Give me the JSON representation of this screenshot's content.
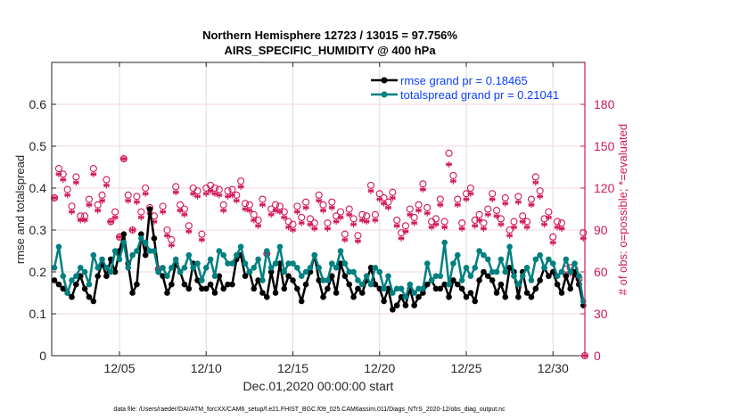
{
  "chart_data": {
    "type": "line",
    "title": [
      "Northern Hemisphere 12723 / 13015 = 97.756%",
      "AIRS_SPECIFIC_HUMIDITY @ 400 hPa"
    ],
    "xlabel": "Dec.01,2020 00:00:00 start",
    "ylabel": "rmse and totalspread",
    "y2label": "# of obs: o=possible; *=evaluated",
    "footer": "data file: /Users/raeder/DAI/ATM_forcXX/CAM6_setup/f.e21.FHIST_BGC.f09_025.CAM6assim.011/Diags_NTrS_2020-12/obs_diag_output.nc",
    "xlim_days": [
      0,
      31.0
    ],
    "ylim": [
      0,
      0.7
    ],
    "y2lim": [
      0,
      210
    ],
    "grid": true,
    "legend_position": "top-right",
    "x_ticks": [
      {
        "day": 4,
        "label": "12/05"
      },
      {
        "day": 9,
        "label": "12/10"
      },
      {
        "day": 14,
        "label": "12/15"
      },
      {
        "day": 19,
        "label": "12/20"
      },
      {
        "day": 24,
        "label": "12/25"
      },
      {
        "day": 29,
        "label": "12/30"
      }
    ],
    "y_ticks": [
      "0",
      "0.1",
      "0.2",
      "0.3",
      "0.4",
      "0.5",
      "0.6"
    ],
    "y_tick_values": [
      0,
      0.1,
      0.2,
      0.3,
      0.4,
      0.5,
      0.6
    ],
    "y2_ticks": [
      "0",
      "30",
      "60",
      "90",
      "120",
      "150",
      "180"
    ],
    "y2_tick_values": [
      0,
      30,
      60,
      90,
      120,
      150,
      180
    ],
    "x_step_days": 0.25,
    "colors": {
      "rmse": "#000000",
      "totalspread": "#008080",
      "obs": "#d1185a",
      "grid": "#dddddd",
      "grid_h": "#f3d6e0"
    },
    "series": [
      {
        "name": "rmse grand pr = 0.18465",
        "key": "rmse",
        "values": [
          0.22,
          0.18,
          0.17,
          0.16,
          0.15,
          0.14,
          0.17,
          0.19,
          0.16,
          0.14,
          0.13,
          0.19,
          0.22,
          0.19,
          0.23,
          0.2,
          0.25,
          0.29,
          0.22,
          0.15,
          0.17,
          0.29,
          0.24,
          0.35,
          0.28,
          0.2,
          0.19,
          0.15,
          0.17,
          0.22,
          0.2,
          0.17,
          0.16,
          0.22,
          0.18,
          0.16,
          0.16,
          0.17,
          0.15,
          0.19,
          0.16,
          0.17,
          0.17,
          0.23,
          0.24,
          0.19,
          0.2,
          0.16,
          0.18,
          0.15,
          0.14,
          0.2,
          0.15,
          0.22,
          0.16,
          0.19,
          0.18,
          0.16,
          0.13,
          0.17,
          0.2,
          0.24,
          0.18,
          0.14,
          0.16,
          0.19,
          0.15,
          0.22,
          0.19,
          0.17,
          0.14,
          0.16,
          0.15,
          0.18,
          0.21,
          0.17,
          0.16,
          0.13,
          0.16,
          0.11,
          0.12,
          0.14,
          0.12,
          0.16,
          0.12,
          0.14,
          0.15,
          0.17,
          0.18,
          0.16,
          0.16,
          0.17,
          0.14,
          0.18,
          0.17,
          0.16,
          0.14,
          0.15,
          0.13,
          0.18,
          0.2,
          0.19,
          0.18,
          0.15,
          0.17,
          0.14,
          0.21,
          0.2,
          0.14,
          0.2,
          0.15,
          0.14,
          0.16,
          0.18,
          0.21,
          0.19,
          0.2,
          0.17,
          0.15,
          0.19,
          0.16,
          0.2,
          0.17,
          0.12
        ],
        "style": "line-asterisk"
      },
      {
        "name": "totalspread grand pr = 0.21041",
        "key": "totalspread",
        "values": [
          0.29,
          0.21,
          0.26,
          0.19,
          0.15,
          0.18,
          0.19,
          0.21,
          0.2,
          0.17,
          0.24,
          0.21,
          0.23,
          0.21,
          0.2,
          0.25,
          0.23,
          0.27,
          0.21,
          0.24,
          0.25,
          0.28,
          0.27,
          0.25,
          0.25,
          0.2,
          0.21,
          0.19,
          0.21,
          0.23,
          0.2,
          0.21,
          0.24,
          0.21,
          0.22,
          0.18,
          0.21,
          0.23,
          0.19,
          0.25,
          0.24,
          0.22,
          0.22,
          0.24,
          0.26,
          0.22,
          0.2,
          0.21,
          0.23,
          0.18,
          0.25,
          0.21,
          0.22,
          0.26,
          0.2,
          0.22,
          0.22,
          0.21,
          0.19,
          0.2,
          0.21,
          0.24,
          0.21,
          0.18,
          0.18,
          0.22,
          0.21,
          0.25,
          0.22,
          0.2,
          0.2,
          0.18,
          0.17,
          0.19,
          0.17,
          0.21,
          0.2,
          0.16,
          0.19,
          0.15,
          0.16,
          0.16,
          0.14,
          0.17,
          0.15,
          0.16,
          0.16,
          0.22,
          0.18,
          0.19,
          0.19,
          0.27,
          0.17,
          0.22,
          0.24,
          0.18,
          0.21,
          0.19,
          0.21,
          0.25,
          0.24,
          0.23,
          0.2,
          0.2,
          0.23,
          0.2,
          0.26,
          0.19,
          0.17,
          0.19,
          0.21,
          0.18,
          0.23,
          0.24,
          0.21,
          0.23,
          0.22,
          0.19,
          0.2,
          0.23,
          0.2,
          0.22,
          0.19,
          0.13
        ]
      }
    ],
    "obs": {
      "possible": [
        95,
        113,
        134,
        130,
        119,
        107,
        128,
        100,
        100,
        112,
        134,
        108,
        115,
        126,
        96,
        103,
        85,
        141,
        115,
        90,
        114,
        103,
        120,
        106,
        100,
        62,
        107,
        90,
        83,
        121,
        108,
        105,
        93,
        120,
        118,
        87,
        120,
        122,
        120,
        119,
        108,
        118,
        119,
        115,
        125,
        109,
        108,
        101,
        97,
        112,
        73,
        105,
        108,
        107,
        103,
        96,
        94,
        107,
        99,
        110,
        98,
        95,
        115,
        108,
        95,
        110,
        100,
        103,
        87,
        105,
        98,
        86,
        101,
        100,
        122,
        101,
        116,
        113,
        110,
        117,
        97,
        88,
        93,
        105,
        99,
        108,
        123,
        106,
        96,
        98,
        112,
        96,
        145,
        129,
        112,
        95,
        116,
        120,
        97,
        101,
        95,
        105,
        116,
        104,
        98,
        113,
        90,
        96,
        114,
        100,
        96,
        112,
        128,
        118,
        98,
        103,
        85,
        96,
        95,
        62,
        63,
        62,
        55,
        88
      ],
      "evaluated": [
        95,
        113,
        130,
        126,
        115,
        103,
        124,
        97,
        97,
        108,
        130,
        104,
        111,
        122,
        96,
        99,
        85,
        141,
        111,
        90,
        110,
        99,
        116,
        102,
        96,
        62,
        103,
        86,
        79,
        117,
        104,
        101,
        89,
        116,
        114,
        83,
        116,
        118,
        116,
        115,
        104,
        114,
        115,
        111,
        121,
        105,
        104,
        97,
        93,
        108,
        73,
        101,
        104,
        103,
        99,
        92,
        90,
        103,
        95,
        106,
        94,
        91,
        111,
        104,
        91,
        106,
        96,
        99,
        83,
        101,
        94,
        82,
        97,
        96,
        118,
        97,
        112,
        109,
        106,
        113,
        93,
        84,
        89,
        101,
        95,
        104,
        119,
        102,
        92,
        94,
        108,
        92,
        137,
        125,
        108,
        91,
        112,
        116,
        93,
        97,
        91,
        101,
        112,
        100,
        94,
        109,
        86,
        92,
        110,
        96,
        92,
        108,
        124,
        114,
        94,
        99,
        81,
        92,
        91,
        58,
        59,
        58,
        51,
        84
      ],
      "last_point": {
        "day": 31.0,
        "possible": 0,
        "evaluated": 0
      }
    }
  }
}
